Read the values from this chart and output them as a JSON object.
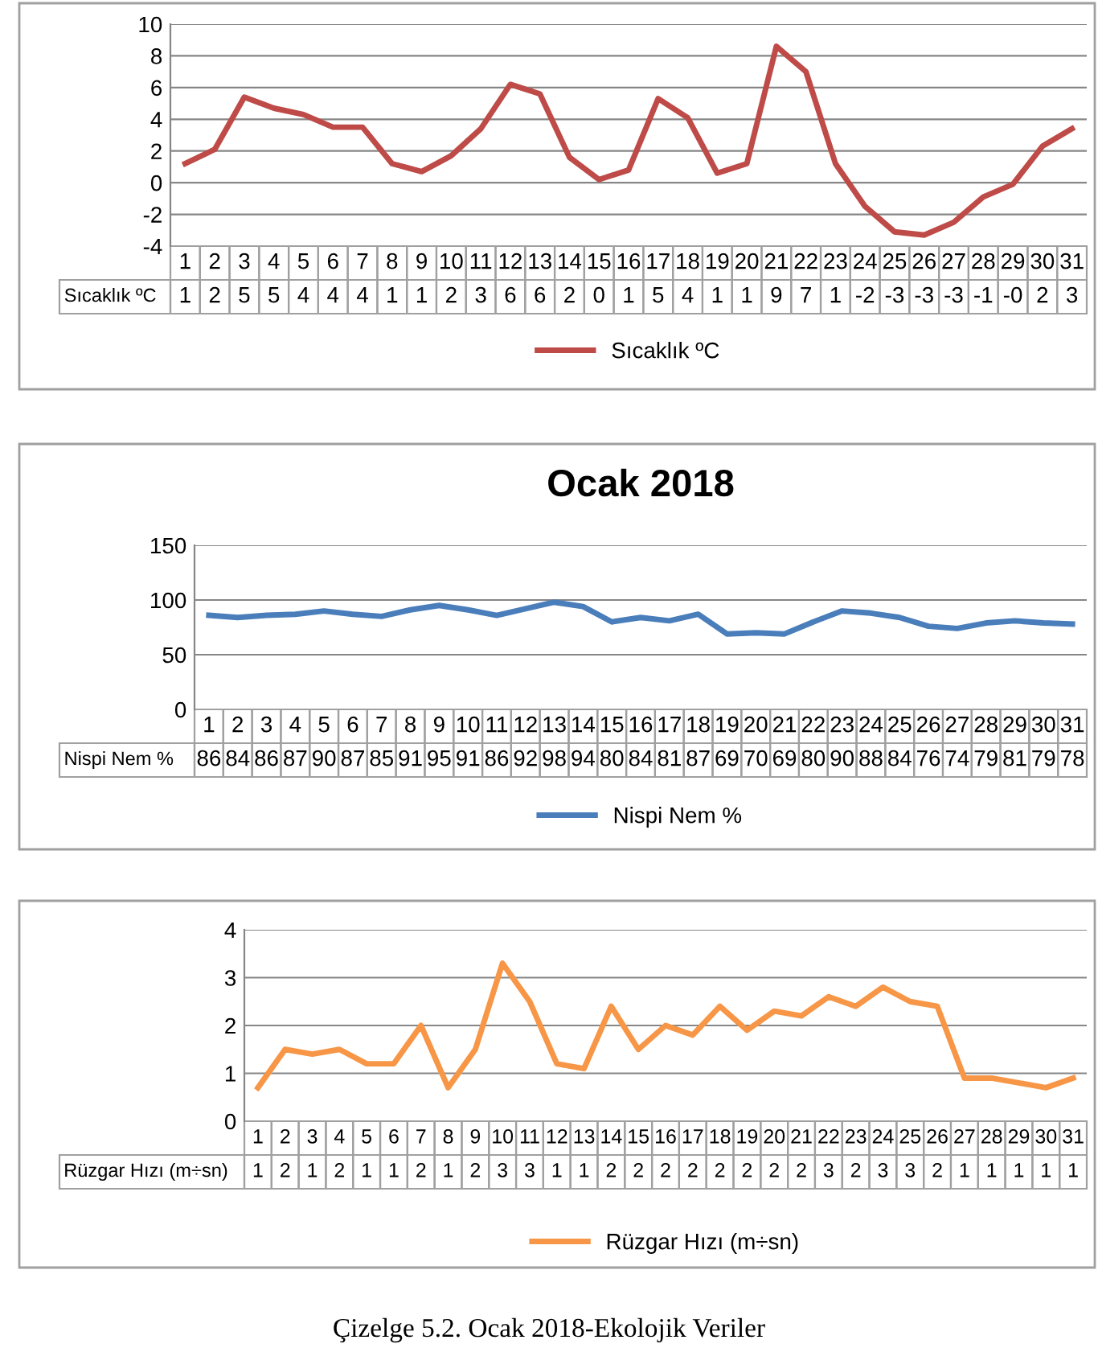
{
  "chart_data": [
    {
      "type": "line",
      "categories": [
        "1",
        "2",
        "3",
        "4",
        "5",
        "6",
        "7",
        "8",
        "9",
        "10",
        "11",
        "12",
        "13",
        "14",
        "15",
        "16",
        "17",
        "18",
        "19",
        "20",
        "21",
        "22",
        "23",
        "24",
        "25",
        "26",
        "27",
        "28",
        "29",
        "30",
        "31"
      ],
      "series": [
        {
          "name": "Sıcaklık ºC",
          "color": "#be4b48",
          "values": [
            1.2,
            2.1,
            5.4,
            4.7,
            4.3,
            3.5,
            3.5,
            1.2,
            0.7,
            1.7,
            3.4,
            6.2,
            5.6,
            1.6,
            0.2,
            0.8,
            5.3,
            4.1,
            0.6,
            1.2,
            8.6,
            7.0,
            1.2,
            -1.5,
            -3.1,
            -3.3,
            -2.5,
            -0.9,
            -0.1,
            2.3,
            3.4
          ],
          "value_labels": [
            "1",
            "2",
            "5",
            "5",
            "4",
            "4",
            "4",
            "1",
            "1",
            "2",
            "3",
            "6",
            "6",
            "2",
            "0",
            "1",
            "5",
            "4",
            "1",
            "1",
            "9",
            "7",
            "1",
            "-2",
            "-3",
            "-3",
            "-3",
            "-1",
            "-0",
            "2",
            "3"
          ]
        }
      ],
      "ylim": [
        -4,
        10
      ],
      "yticks": [
        -4,
        -2,
        0,
        2,
        4,
        6,
        8,
        10
      ],
      "grid": "y",
      "legend": "bottom",
      "marker": "none",
      "line_style": "solid"
    },
    {
      "type": "line",
      "title": "Ocak 2018",
      "categories": [
        "1",
        "2",
        "3",
        "4",
        "5",
        "6",
        "7",
        "8",
        "9",
        "10",
        "11",
        "12",
        "13",
        "14",
        "15",
        "16",
        "17",
        "18",
        "19",
        "20",
        "21",
        "22",
        "23",
        "24",
        "25",
        "26",
        "27",
        "28",
        "29",
        "30",
        "31"
      ],
      "series": [
        {
          "name": "Nispi Nem %",
          "color": "#4a7ebb",
          "values": [
            86,
            84,
            86,
            87,
            90,
            87,
            85,
            91,
            95,
            91,
            86,
            92,
            98,
            94,
            80,
            84,
            81,
            87,
            69,
            70,
            69,
            80,
            90,
            88,
            84,
            76,
            74,
            79,
            81,
            79,
            78
          ]
        }
      ],
      "data_labels": true,
      "ylim": [
        0,
        150
      ],
      "yticks": [
        0,
        50,
        100,
        150
      ],
      "grid": "y",
      "legend": "bottom",
      "marker": "none",
      "line_style": "solid"
    },
    {
      "type": "line",
      "categories": [
        "1",
        "2",
        "3",
        "4",
        "5",
        "6",
        "7",
        "8",
        "9",
        "10",
        "11",
        "12",
        "13",
        "14",
        "15",
        "16",
        "17",
        "18",
        "19",
        "20",
        "21",
        "22",
        "23",
        "24",
        "25",
        "26",
        "27",
        "28",
        "29",
        "30",
        "31"
      ],
      "series": [
        {
          "name": "Rüzgar Hızı (m÷sn)",
          "color": "#f79646",
          "values": [
            0.7,
            1.5,
            1.4,
            1.5,
            1.2,
            1.2,
            2.0,
            0.7,
            1.5,
            3.3,
            2.5,
            1.2,
            1.1,
            2.4,
            1.5,
            2.0,
            1.8,
            2.4,
            1.9,
            2.3,
            2.2,
            2.6,
            2.4,
            2.8,
            2.5,
            2.4,
            0.9,
            0.9,
            0.8,
            0.7,
            0.9
          ],
          "value_labels": [
            "1",
            "2",
            "1",
            "2",
            "1",
            "1",
            "2",
            "1",
            "2",
            "3",
            "3",
            "1",
            "1",
            "2",
            "2",
            "2",
            "2",
            "2",
            "2",
            "2",
            "2",
            "3",
            "2",
            "3",
            "3",
            "2",
            "1",
            "1",
            "1",
            "1",
            "1"
          ]
        }
      ],
      "ylim": [
        0,
        4
      ],
      "yticks": [
        0,
        1,
        2,
        3,
        4
      ],
      "grid": "y",
      "legend": "bottom",
      "marker": "none",
      "line_style": "solid",
      "annotations": [
        "Çizelge 5.2. Ocak 2018-Ekolojik Veriler"
      ]
    }
  ]
}
